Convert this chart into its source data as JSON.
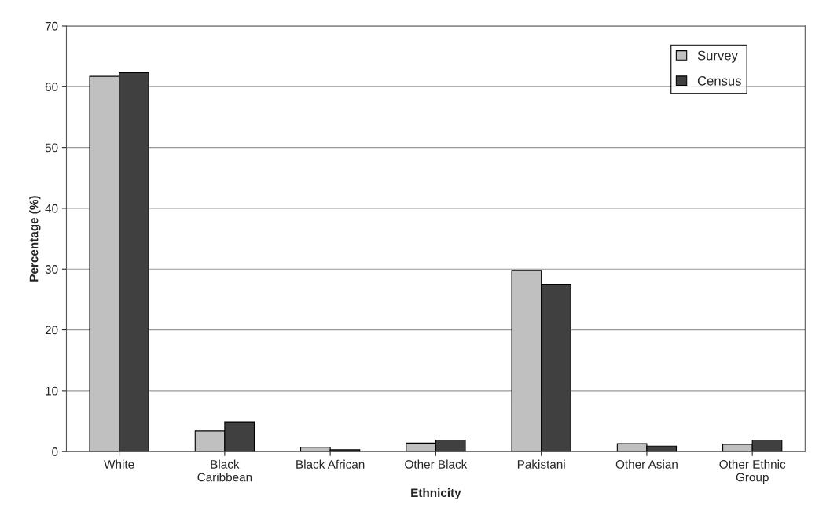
{
  "chart_data": {
    "type": "bar",
    "xlabel": "Ethnicity",
    "ylabel": "Percentage (%)",
    "categories": [
      "White",
      "Black\nCaribbean",
      "Black African",
      "Other Black",
      "Pakistani",
      "Other Asian",
      "Other Ethnic\nGroup"
    ],
    "series": [
      {
        "name": "Survey",
        "color": "#c0c0c0",
        "values": [
          61.7,
          3.4,
          0.7,
          1.4,
          29.8,
          1.3,
          1.2
        ]
      },
      {
        "name": "Census",
        "color": "#404040",
        "values": [
          62.3,
          4.8,
          0.3,
          1.9,
          27.5,
          0.9,
          1.9
        ]
      }
    ],
    "ylim": [
      0,
      70
    ],
    "yticks": [
      0,
      10,
      20,
      30,
      40,
      50,
      60,
      70
    ],
    "grid": "y",
    "legend": "top right"
  }
}
